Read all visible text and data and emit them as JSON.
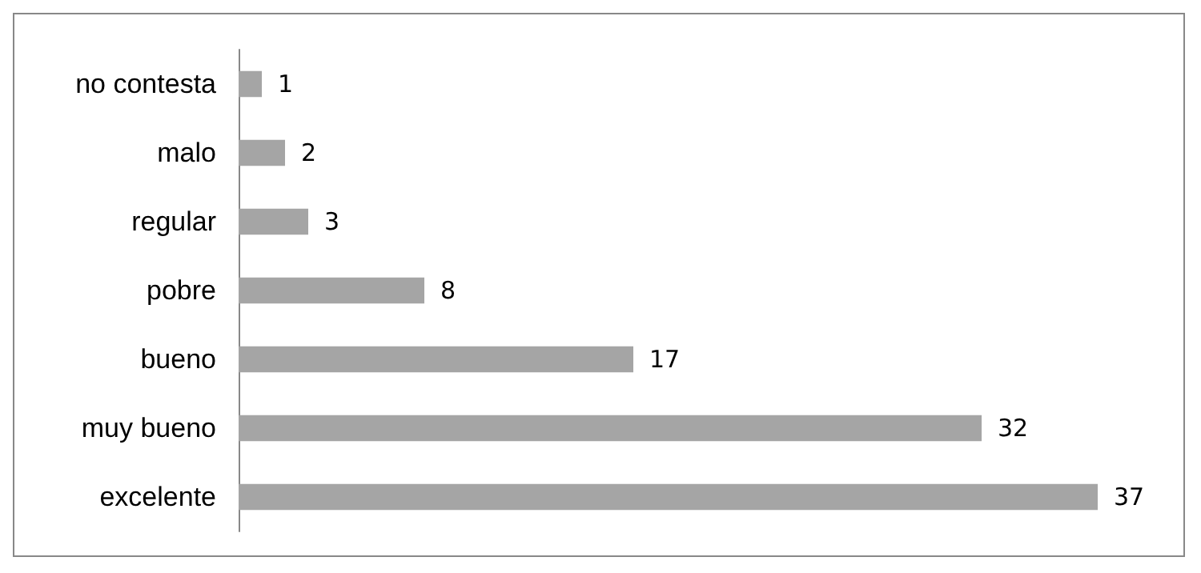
{
  "chart_data": {
    "type": "bar",
    "orientation": "horizontal",
    "categories": [
      "no contesta",
      "malo",
      "regular",
      "pobre",
      "bueno",
      "muy bueno",
      "excelente"
    ],
    "values": [
      1,
      2,
      3,
      8,
      17,
      32,
      37
    ],
    "color": "#a5a5a5",
    "data_labels": true
  }
}
